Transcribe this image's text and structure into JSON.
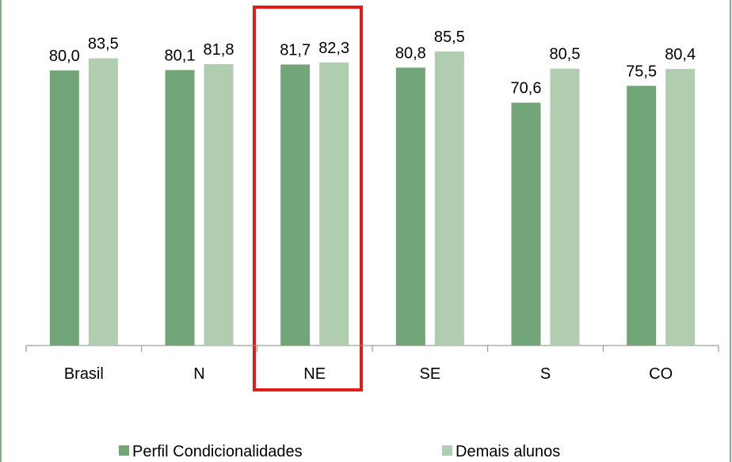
{
  "chart_data": {
    "type": "bar",
    "categories": [
      "Brasil",
      "N",
      "NE",
      "SE",
      "S",
      "CO"
    ],
    "series": [
      {
        "name": "Perfil Condicionalidades",
        "color": "#72a577",
        "values": [
          80.0,
          80.1,
          81.7,
          80.8,
          70.6,
          75.5
        ],
        "value_labels": [
          "80,0",
          "80,1",
          "81,7",
          "80,8",
          "70,6",
          "75,5"
        ]
      },
      {
        "name": "Demais alunos",
        "color": "#b0cdb0",
        "values": [
          83.5,
          81.8,
          82.3,
          85.5,
          80.5,
          80.4
        ],
        "value_labels": [
          "83,5",
          "81,8",
          "82,3",
          "85,5",
          "80,5",
          "80,4"
        ]
      }
    ],
    "ylim": [
      0,
      100
    ],
    "legend": "bottom"
  }
}
